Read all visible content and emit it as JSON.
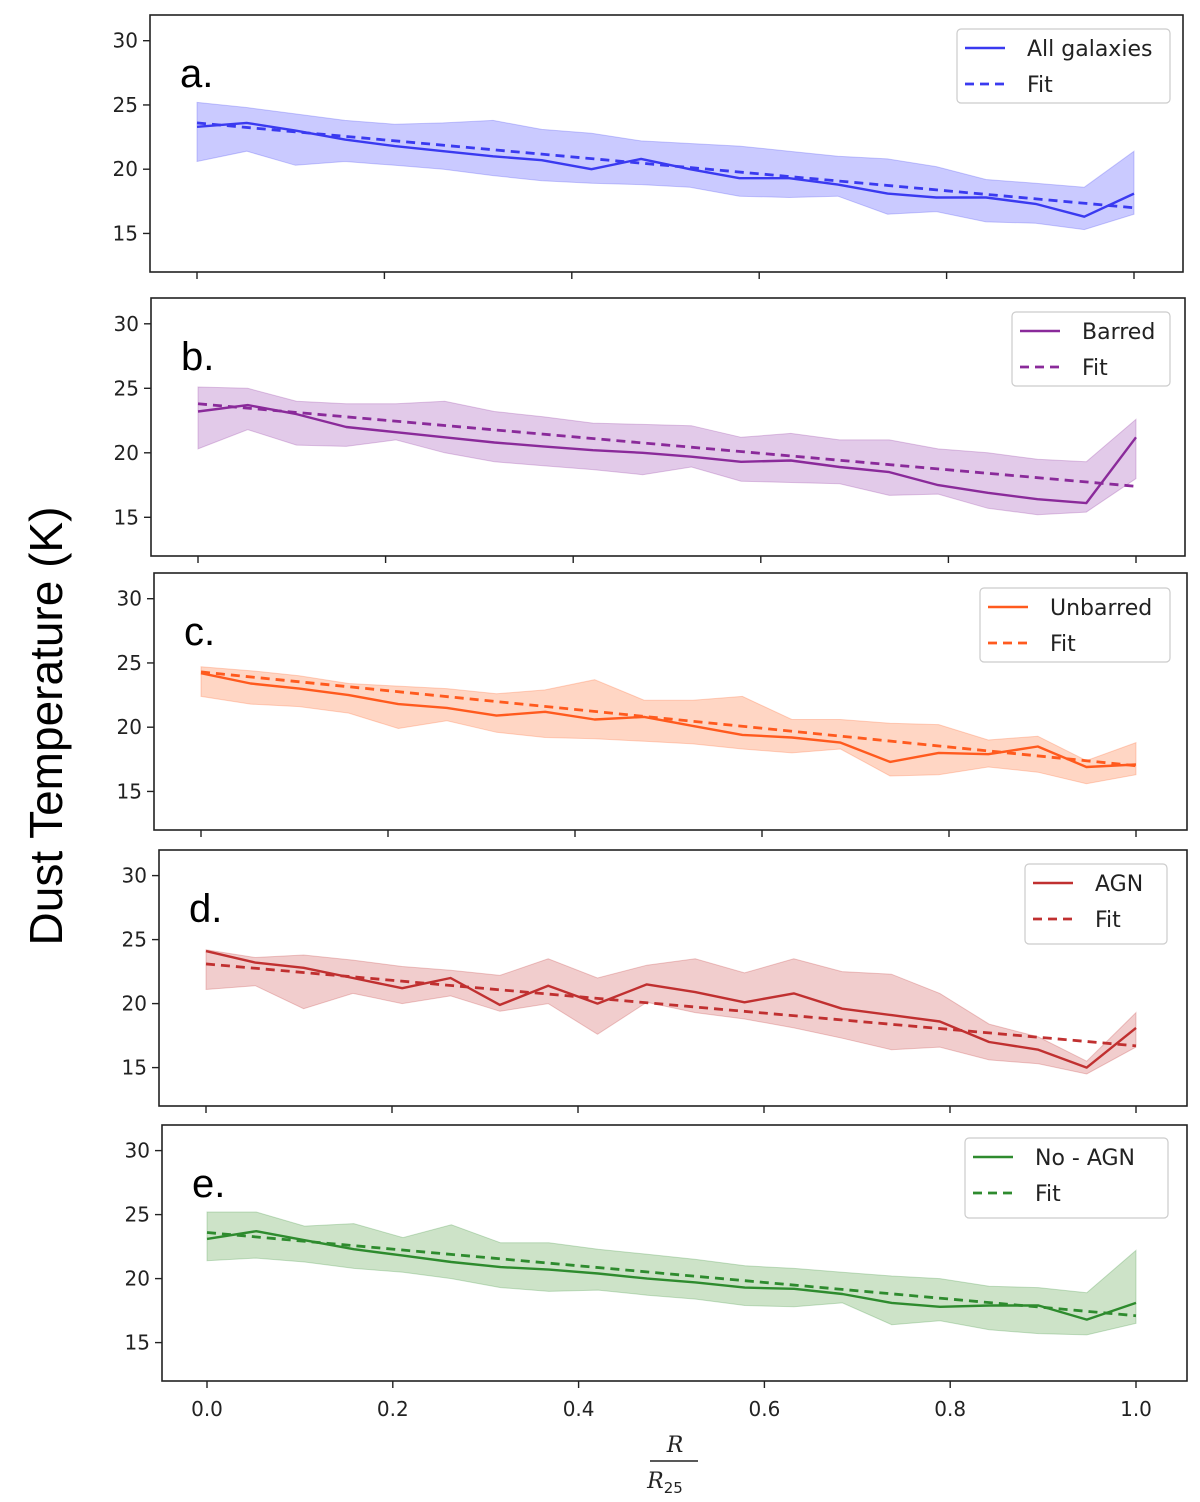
{
  "figure": {
    "ylabel": "Dust Temperature (K)",
    "xlabel_num": "R",
    "xlabel_den": "R",
    "xlabel_den_sub": "25"
  },
  "chart_data": [
    {
      "type": "line",
      "panel": "a.",
      "xlim": [
        0,
        1
      ],
      "ylim": [
        12,
        32
      ],
      "yticks": [
        15,
        20,
        25,
        30
      ],
      "xticks": [
        0.0,
        0.2,
        0.4,
        0.6,
        0.8,
        1.0
      ],
      "xtick_labels": [
        "0.0",
        "0.2",
        "0.4",
        "0.6",
        "0.8",
        "1.0"
      ],
      "color": "#3a3af0",
      "fill_color": "#b8b8ff",
      "series": [
        {
          "name": "All galaxies",
          "style": "solid",
          "x": [
            0.0,
            0.053,
            0.105,
            0.158,
            0.211,
            0.263,
            0.316,
            0.368,
            0.421,
            0.474,
            0.526,
            0.579,
            0.632,
            0.684,
            0.737,
            0.789,
            0.842,
            0.895,
            0.947,
            1.0
          ],
          "values": [
            23.3,
            23.6,
            23.0,
            22.3,
            21.8,
            21.4,
            21.0,
            20.7,
            20.0,
            20.8,
            20.0,
            19.3,
            19.3,
            18.8,
            18.1,
            17.8,
            17.8,
            17.3,
            16.3,
            18.1
          ],
          "upper": [
            25.2,
            24.8,
            24.3,
            23.8,
            23.5,
            23.6,
            23.8,
            23.1,
            22.8,
            22.2,
            22.0,
            21.8,
            21.4,
            21.0,
            20.8,
            20.2,
            19.2,
            18.9,
            18.6,
            21.4
          ],
          "lower": [
            20.6,
            21.4,
            20.3,
            20.6,
            20.3,
            20.0,
            19.5,
            19.1,
            18.9,
            18.8,
            18.6,
            17.9,
            17.8,
            17.9,
            16.5,
            16.7,
            15.9,
            15.8,
            15.3,
            16.5
          ]
        },
        {
          "name": "Fit",
          "style": "dashed",
          "x": [
            0.0,
            1.0
          ],
          "values": [
            23.6,
            17.0
          ]
        }
      ]
    },
    {
      "type": "line",
      "panel": "b.",
      "xlim": [
        0,
        1
      ],
      "ylim": [
        12,
        32
      ],
      "yticks": [
        15,
        20,
        25,
        30
      ],
      "xticks": [
        0.0,
        0.2,
        0.4,
        0.6,
        0.8,
        1.0
      ],
      "xtick_labels": [
        "0.0",
        "0.2",
        "0.4",
        "0.6",
        "0.8",
        "1.0"
      ],
      "color": "#8a2a9a",
      "fill_color": "#d8b8e2",
      "series": [
        {
          "name": "Barred",
          "style": "solid",
          "x": [
            0.0,
            0.053,
            0.105,
            0.158,
            0.211,
            0.263,
            0.316,
            0.368,
            0.421,
            0.474,
            0.526,
            0.579,
            0.632,
            0.684,
            0.737,
            0.789,
            0.842,
            0.895,
            0.947,
            1.0
          ],
          "values": [
            23.2,
            23.7,
            23.0,
            22.0,
            21.6,
            21.2,
            20.8,
            20.5,
            20.2,
            20.0,
            19.7,
            19.3,
            19.4,
            18.9,
            18.5,
            17.5,
            16.9,
            16.4,
            16.1,
            21.2
          ],
          "upper": [
            25.1,
            25.0,
            24.0,
            23.8,
            23.8,
            24.0,
            23.2,
            22.8,
            22.3,
            22.2,
            22.1,
            21.2,
            21.5,
            21.0,
            21.0,
            20.3,
            20.0,
            19.5,
            19.3,
            22.6
          ],
          "lower": [
            20.3,
            21.8,
            20.6,
            20.5,
            21.0,
            20.0,
            19.3,
            19.0,
            18.7,
            18.3,
            18.9,
            17.8,
            17.7,
            17.6,
            16.7,
            16.8,
            15.7,
            15.2,
            15.4,
            18.0
          ]
        },
        {
          "name": "Fit",
          "style": "dashed",
          "x": [
            0.0,
            1.0
          ],
          "values": [
            23.8,
            17.4
          ]
        }
      ]
    },
    {
      "type": "line",
      "panel": "c.",
      "xlim": [
        0,
        1
      ],
      "ylim": [
        12,
        32
      ],
      "yticks": [
        15,
        20,
        25,
        30
      ],
      "xticks": [
        0.0,
        0.2,
        0.4,
        0.6,
        0.8,
        1.0
      ],
      "xtick_labels": [
        "0.0",
        "0.2",
        "0.4",
        "0.6",
        "0.8",
        "1.0"
      ],
      "color": "#ff5a1e",
      "fill_color": "#ffc8b0",
      "series": [
        {
          "name": "Unbarred",
          "style": "solid",
          "x": [
            0.0,
            0.053,
            0.105,
            0.158,
            0.211,
            0.263,
            0.316,
            0.368,
            0.421,
            0.474,
            0.526,
            0.579,
            0.632,
            0.684,
            0.737,
            0.789,
            0.842,
            0.895,
            0.947,
            1.0
          ],
          "values": [
            24.2,
            23.4,
            23.0,
            22.5,
            21.8,
            21.5,
            20.9,
            21.2,
            20.6,
            20.8,
            20.1,
            19.4,
            19.2,
            18.8,
            17.3,
            18.0,
            17.9,
            18.5,
            16.9,
            17.1
          ],
          "upper": [
            24.7,
            24.4,
            24.0,
            23.4,
            23.2,
            23.0,
            22.6,
            22.9,
            23.7,
            22.1,
            22.1,
            22.4,
            20.6,
            20.6,
            20.3,
            20.2,
            19.0,
            19.3,
            17.4,
            18.8
          ],
          "lower": [
            22.4,
            21.8,
            21.6,
            21.1,
            19.9,
            20.5,
            19.6,
            19.2,
            19.1,
            18.9,
            18.7,
            18.3,
            18.0,
            18.3,
            16.2,
            16.3,
            16.9,
            16.5,
            15.6,
            16.3
          ]
        },
        {
          "name": "Fit",
          "style": "dashed",
          "x": [
            0.0,
            1.0
          ],
          "values": [
            24.3,
            17.0
          ]
        }
      ]
    },
    {
      "type": "line",
      "panel": "d.",
      "xlim": [
        0,
        1
      ],
      "ylim": [
        12,
        32
      ],
      "yticks": [
        15,
        20,
        25,
        30
      ],
      "xticks": [
        0.0,
        0.2,
        0.4,
        0.6,
        0.8,
        1.0
      ],
      "xtick_labels": [
        "0.0",
        "0.2",
        "0.4",
        "0.6",
        "0.8",
        "1.0"
      ],
      "color": "#c03030",
      "fill_color": "#ecbcbc",
      "series": [
        {
          "name": "AGN",
          "style": "solid",
          "x": [
            0.0,
            0.053,
            0.105,
            0.158,
            0.211,
            0.263,
            0.316,
            0.368,
            0.421,
            0.474,
            0.526,
            0.579,
            0.632,
            0.684,
            0.737,
            0.789,
            0.842,
            0.895,
            0.947,
            1.0
          ],
          "values": [
            24.1,
            23.2,
            22.8,
            22.0,
            21.2,
            22.0,
            19.9,
            21.4,
            20.0,
            21.5,
            20.9,
            20.1,
            20.8,
            19.6,
            19.1,
            18.6,
            17.0,
            16.4,
            15.0,
            18.1
          ],
          "upper": [
            24.2,
            23.6,
            23.8,
            23.4,
            22.9,
            22.6,
            22.2,
            23.5,
            22.0,
            23.0,
            23.5,
            22.4,
            23.5,
            22.5,
            22.3,
            20.8,
            18.4,
            17.4,
            15.5,
            19.3
          ],
          "lower": [
            21.1,
            21.4,
            19.6,
            20.8,
            20.0,
            20.6,
            19.4,
            20.0,
            17.6,
            20.1,
            19.3,
            18.8,
            18.1,
            17.3,
            16.4,
            16.6,
            15.6,
            15.3,
            14.5,
            16.6
          ]
        },
        {
          "name": "Fit",
          "style": "dashed",
          "x": [
            0.0,
            1.0
          ],
          "values": [
            23.1,
            16.7
          ]
        }
      ]
    },
    {
      "type": "line",
      "panel": "e.",
      "xlim": [
        0,
        1
      ],
      "ylim": [
        12,
        32
      ],
      "yticks": [
        15,
        20,
        25,
        30
      ],
      "xticks": [
        0.0,
        0.2,
        0.4,
        0.6,
        0.8,
        1.0
      ],
      "xtick_labels": [
        "0.0",
        "0.2",
        "0.4",
        "0.6",
        "0.8",
        "1.0"
      ],
      "color": "#2e8b2e",
      "fill_color": "#bcd9b6",
      "series": [
        {
          "name": "No - AGN",
          "style": "solid",
          "x": [
            0.0,
            0.053,
            0.105,
            0.158,
            0.211,
            0.263,
            0.316,
            0.368,
            0.421,
            0.474,
            0.526,
            0.579,
            0.632,
            0.684,
            0.737,
            0.789,
            0.842,
            0.895,
            0.947,
            1.0
          ],
          "values": [
            23.1,
            23.7,
            23.0,
            22.3,
            21.8,
            21.3,
            20.9,
            20.7,
            20.4,
            20.0,
            19.7,
            19.3,
            19.2,
            18.8,
            18.1,
            17.8,
            17.9,
            17.9,
            16.8,
            18.1
          ],
          "upper": [
            25.2,
            25.2,
            24.1,
            24.3,
            23.2,
            24.2,
            22.8,
            22.8,
            22.3,
            21.9,
            21.5,
            21.0,
            20.8,
            20.5,
            20.2,
            20.0,
            19.4,
            19.3,
            18.9,
            22.2
          ],
          "lower": [
            21.4,
            21.6,
            21.3,
            20.8,
            20.5,
            20.0,
            19.3,
            19.0,
            19.1,
            18.7,
            18.4,
            17.9,
            17.8,
            18.1,
            16.4,
            16.7,
            16.0,
            15.7,
            15.6,
            16.5
          ]
        },
        {
          "name": "Fit",
          "style": "dashed",
          "x": [
            0.0,
            1.0
          ],
          "values": [
            23.6,
            17.1
          ]
        }
      ]
    }
  ]
}
